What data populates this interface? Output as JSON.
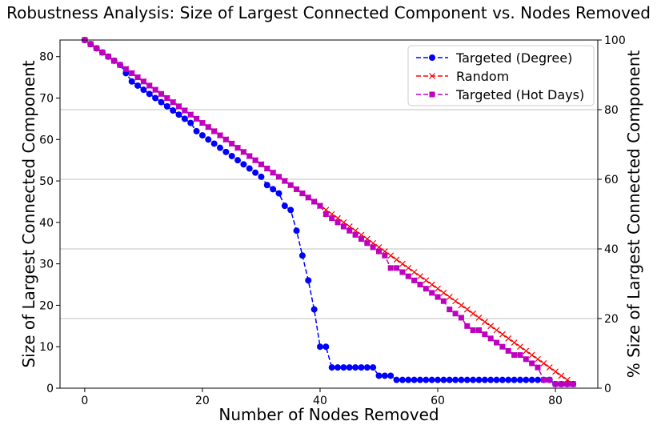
{
  "chart_data": {
    "type": "line",
    "title": "Robustness Analysis: Size of Largest Connected Component vs. Nodes Removed",
    "xlabel": "Number of Nodes Removed",
    "ylabel": "Size of Largest Connected Component",
    "y2label": "% Size of Largest Connected Component",
    "xlim": [
      -4.2,
      87.2
    ],
    "ylim": [
      0,
      84
    ],
    "y2lim": [
      0,
      100
    ],
    "x_ticks": [
      0,
      20,
      40,
      60,
      80
    ],
    "y_ticks": [
      0,
      10,
      20,
      30,
      40,
      50,
      60,
      70,
      80
    ],
    "y2_ticks": [
      0,
      20,
      40,
      60,
      80,
      100
    ],
    "grid": "horizontal lines at right-axis ticks",
    "legend_position": "top-right",
    "series": [
      {
        "name": "Targeted (Degree)",
        "color": "#0000ff",
        "marker": "circle",
        "linestyle": "dashed",
        "x": [
          0,
          1,
          2,
          3,
          4,
          5,
          6,
          7,
          8,
          9,
          10,
          11,
          12,
          13,
          14,
          15,
          16,
          17,
          18,
          19,
          20,
          21,
          22,
          23,
          24,
          25,
          26,
          27,
          28,
          29,
          30,
          31,
          32,
          33,
          34,
          35,
          36,
          37,
          38,
          39,
          40,
          41,
          42,
          43,
          44,
          45,
          46,
          47,
          48,
          49,
          50,
          51,
          52,
          53,
          54,
          55,
          56,
          57,
          58,
          59,
          60,
          61,
          62,
          63,
          64,
          65,
          66,
          67,
          68,
          69,
          70,
          71,
          72,
          73,
          74,
          75,
          76,
          77,
          78,
          79,
          80,
          81,
          82,
          83
        ],
        "y": [
          84,
          83,
          82,
          81,
          80,
          79,
          78,
          76,
          74,
          73,
          72,
          71,
          70,
          69,
          68,
          67,
          66,
          65,
          64,
          62,
          61,
          60,
          59,
          58,
          57,
          56,
          55,
          54,
          53,
          52,
          51,
          49,
          48,
          47,
          44,
          43,
          38,
          32,
          26,
          19,
          10,
          10,
          5,
          5,
          5,
          5,
          5,
          5,
          5,
          5,
          3,
          3,
          3,
          2,
          2,
          2,
          2,
          2,
          2,
          2,
          2,
          2,
          2,
          2,
          2,
          2,
          2,
          2,
          2,
          2,
          2,
          2,
          2,
          2,
          2,
          2,
          2,
          2,
          2,
          2,
          1,
          1,
          1,
          1
        ]
      },
      {
        "name": "Random",
        "color": "#ff0000",
        "marker": "x",
        "linestyle": "dashed",
        "x": [
          0,
          1,
          2,
          3,
          4,
          5,
          6,
          7,
          8,
          9,
          10,
          11,
          12,
          13,
          14,
          15,
          16,
          17,
          18,
          19,
          20,
          21,
          22,
          23,
          24,
          25,
          26,
          27,
          28,
          29,
          30,
          31,
          32,
          33,
          34,
          35,
          36,
          37,
          38,
          39,
          40,
          41,
          42,
          43,
          44,
          45,
          46,
          47,
          48,
          49,
          50,
          51,
          52,
          53,
          54,
          55,
          56,
          57,
          58,
          59,
          60,
          61,
          62,
          63,
          64,
          65,
          66,
          67,
          68,
          69,
          70,
          71,
          72,
          73,
          74,
          75,
          76,
          77,
          78,
          79,
          80,
          81,
          82,
          83
        ],
        "y": [
          84,
          83,
          82,
          81,
          80,
          79,
          78,
          77,
          76,
          75,
          74,
          73,
          72,
          71,
          70,
          69,
          68,
          67,
          66,
          65,
          64,
          63,
          62,
          61,
          60,
          59,
          58,
          57,
          56,
          55,
          54,
          53,
          52,
          51,
          50,
          49,
          48,
          47,
          46,
          45,
          44,
          43,
          42,
          41,
          40,
          39,
          38,
          37,
          36,
          35,
          34,
          33,
          32,
          31,
          30,
          29,
          28,
          27,
          26,
          25,
          24,
          23,
          22,
          21,
          20,
          19,
          18,
          17,
          16,
          15,
          14,
          13,
          12,
          11,
          10,
          9,
          8,
          7,
          6,
          5,
          4,
          3,
          2,
          1
        ]
      },
      {
        "name": "Targeted (Hot Days)",
        "color": "#bf00bf",
        "marker": "square",
        "linestyle": "dashed",
        "x": [
          0,
          1,
          2,
          3,
          4,
          5,
          6,
          7,
          8,
          9,
          10,
          11,
          12,
          13,
          14,
          15,
          16,
          17,
          18,
          19,
          20,
          21,
          22,
          23,
          24,
          25,
          26,
          27,
          28,
          29,
          30,
          31,
          32,
          33,
          34,
          35,
          36,
          37,
          38,
          39,
          40,
          41,
          42,
          43,
          44,
          45,
          46,
          47,
          48,
          49,
          50,
          51,
          52,
          53,
          54,
          55,
          56,
          57,
          58,
          59,
          60,
          61,
          62,
          63,
          64,
          65,
          66,
          67,
          68,
          69,
          70,
          71,
          72,
          73,
          74,
          75,
          76,
          77,
          78,
          79,
          80,
          81,
          82,
          83
        ],
        "y": [
          84,
          83,
          82,
          81,
          80,
          79,
          78,
          77,
          76,
          75,
          74,
          73,
          72,
          71,
          70,
          69,
          68,
          67,
          66,
          65,
          64,
          63,
          62,
          61,
          60,
          59,
          58,
          57,
          56,
          55,
          54,
          53,
          52,
          51,
          50,
          49,
          48,
          47,
          46,
          45,
          44,
          42,
          41,
          40,
          39,
          38,
          37,
          36,
          35,
          34,
          33,
          32,
          29,
          29,
          28,
          27,
          26,
          25,
          24,
          23,
          22,
          21,
          19,
          18,
          17,
          15,
          14,
          14,
          13,
          12,
          11,
          10,
          9,
          8,
          8,
          7,
          6,
          5,
          2,
          2,
          1,
          1,
          1,
          1
        ]
      }
    ]
  }
}
